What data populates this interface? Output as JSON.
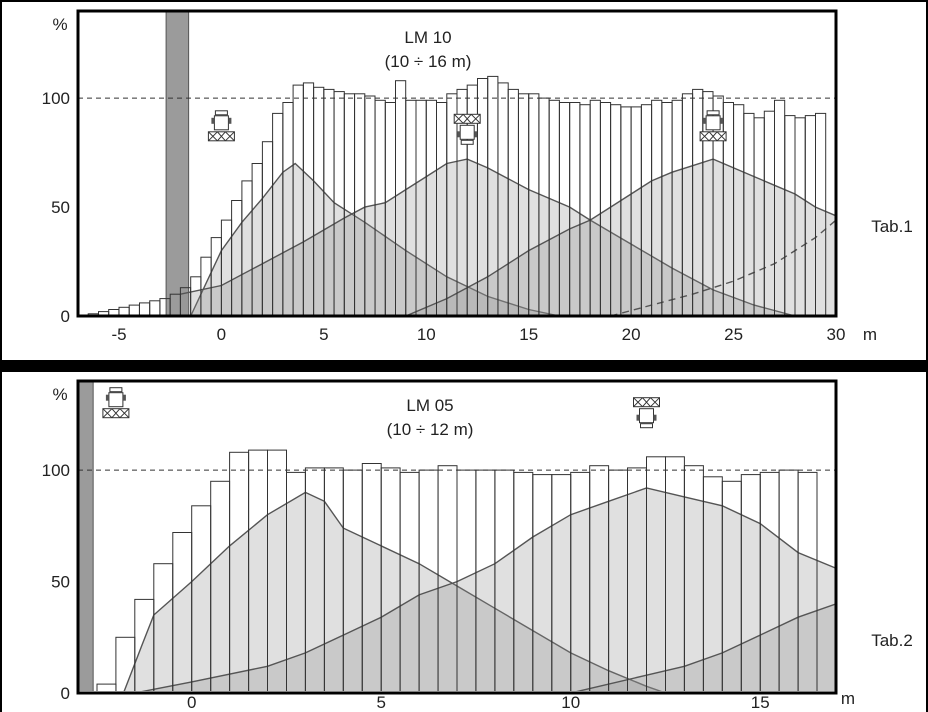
{
  "colors": {
    "frame": "#000000",
    "panel_bg": "#ffffff",
    "bar_fill": "#ffffff",
    "bar_stroke": "#333333",
    "band": "#9b9b9b",
    "dist_fill": "#8f8f8f",
    "dist_stroke": "#555555"
  },
  "chart_data": [
    {
      "type": "bar",
      "title": "LM 10",
      "subtitle": "(10 ÷ 16 m)",
      "ylabel": "%",
      "xunit": "m",
      "side_label": "Tab.1",
      "xlim": [
        -7,
        30
      ],
      "ylim": [
        0,
        140
      ],
      "xticks": [
        "-5",
        "0",
        "5",
        "10",
        "15",
        "20",
        "25",
        "30"
      ],
      "xtick_values": [
        -5,
        0,
        5,
        10,
        15,
        20,
        25,
        30
      ],
      "yticks": [
        "0",
        "50",
        "100"
      ],
      "ytick_values": [
        0,
        50,
        100
      ],
      "reference_line": 100,
      "shaded_band": [
        -2.7,
        -1.6
      ],
      "bar_start": -6.5,
      "bar_width": 0.5,
      "bar_values": [
        1,
        2,
        3,
        4,
        5,
        6,
        7,
        8,
        10,
        13,
        18,
        27,
        36,
        44,
        53,
        62,
        70,
        80,
        93,
        98,
        106,
        107,
        105,
        104,
        103,
        102,
        102,
        101,
        99,
        98,
        108,
        99,
        99,
        99,
        98,
        102,
        104,
        106,
        109,
        110,
        107,
        104,
        102,
        102,
        100,
        99,
        98,
        98,
        97,
        99,
        98,
        97,
        96,
        96,
        97,
        99,
        98,
        99,
        102,
        104,
        103,
        101,
        98,
        97,
        93,
        91,
        94,
        99,
        92,
        91,
        92,
        93
      ],
      "icons": [
        {
          "name": "tractor-icon",
          "x": 0.0,
          "y": 85,
          "dir": "up"
        },
        {
          "name": "tractor-icon",
          "x": 12.0,
          "y": 88,
          "dir": "down"
        },
        {
          "name": "tractor-icon",
          "x": 24.0,
          "y": 85,
          "dir": "up"
        }
      ],
      "distribution_series": [
        {
          "name": "pass-1",
          "style": "solid",
          "x": [
            -1.5,
            0,
            1,
            2,
            3,
            3.6,
            4.5,
            5.5,
            7,
            9,
            11,
            13,
            15,
            16.5
          ],
          "y": [
            0,
            30,
            43,
            54,
            66,
            70,
            62,
            52,
            43,
            30,
            18,
            9,
            3,
            0
          ]
        },
        {
          "name": "pass-2",
          "style": "solid",
          "x": [
            -2,
            0,
            2,
            4,
            6,
            7,
            8,
            9,
            10,
            11,
            12,
            13,
            15,
            17,
            18,
            20,
            22,
            24,
            26,
            28
          ],
          "y": [
            10,
            14,
            24,
            34,
            45,
            50,
            52,
            58,
            64,
            70,
            72,
            68,
            58,
            50,
            44,
            33,
            22,
            12,
            5,
            0
          ]
        },
        {
          "name": "pass-3",
          "style": "solid",
          "x": [
            9,
            11,
            13,
            15,
            17,
            18,
            19,
            20,
            21,
            22,
            23,
            24,
            25,
            26,
            27,
            28,
            29,
            30
          ],
          "y": [
            0,
            8,
            18,
            30,
            40,
            44,
            50,
            56,
            62,
            66,
            69,
            72,
            68,
            64,
            60,
            56,
            50,
            46
          ]
        },
        {
          "name": "pass-4",
          "style": "dashed",
          "x": [
            19,
            21,
            23,
            25,
            27,
            29,
            30
          ],
          "y": [
            0,
            5,
            10,
            16,
            24,
            36,
            44
          ]
        }
      ]
    },
    {
      "type": "bar",
      "title": "LM 05",
      "subtitle": "(10 ÷ 12 m)",
      "ylabel": "%",
      "xunit": "m",
      "side_label": "Tab.2",
      "xlim": [
        -3,
        17
      ],
      "ylim": [
        0,
        140
      ],
      "xticks": [
        "0",
        "5",
        "10",
        "15"
      ],
      "xtick_values": [
        0,
        5,
        10,
        15
      ],
      "yticks": [
        "0",
        "50",
        "100"
      ],
      "ytick_values": [
        0,
        50,
        100
      ],
      "reference_line": 100,
      "shaded_band": [
        -3,
        -2.6
      ],
      "bar_start": -2.5,
      "bar_width": 0.5,
      "bar_values": [
        4,
        25,
        42,
        58,
        72,
        84,
        95,
        108,
        109,
        109,
        99,
        101,
        101,
        100,
        103,
        101,
        99,
        100,
        102,
        100,
        100,
        100,
        99,
        98,
        98,
        99,
        102,
        100,
        101,
        106,
        106,
        102,
        97,
        95,
        98,
        99,
        100,
        99
      ],
      "icons": [
        {
          "name": "tractor-icon",
          "x": -2.0,
          "y": 128,
          "dir": "up"
        },
        {
          "name": "tractor-icon",
          "x": 12.0,
          "y": 128,
          "dir": "down"
        }
      ],
      "distribution_series": [
        {
          "name": "pass-1",
          "style": "solid",
          "x": [
            -1.8,
            -1.3,
            -1,
            0,
            1,
            2,
            3,
            3.5,
            4,
            5,
            6,
            7,
            8,
            9,
            10,
            11,
            12,
            12.5
          ],
          "y": [
            0,
            22,
            35,
            50,
            66,
            80,
            90,
            86,
            74,
            66,
            58,
            48,
            38,
            28,
            18,
            10,
            3,
            0
          ]
        },
        {
          "name": "pass-2",
          "style": "solid",
          "x": [
            -1.5,
            0,
            2,
            3,
            4,
            5,
            6,
            7,
            8,
            9,
            10,
            11,
            12,
            13,
            14,
            15,
            16,
            17
          ],
          "y": [
            0,
            5,
            12,
            18,
            26,
            34,
            44,
            50,
            58,
            70,
            80,
            86,
            92,
            88,
            84,
            76,
            63,
            56
          ]
        },
        {
          "name": "pass-3",
          "style": "solid",
          "x": [
            10,
            12,
            13,
            14,
            15,
            16,
            17
          ],
          "y": [
            0,
            8,
            12,
            18,
            26,
            34,
            40
          ]
        }
      ]
    }
  ]
}
